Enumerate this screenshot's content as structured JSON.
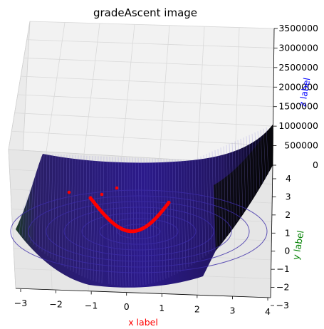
{
  "chart_data": {
    "type": "surface3d",
    "title": "gradeAscent image",
    "xlabel": "x label",
    "ylabel": "y label",
    "zlabel": "z label",
    "xlabel_color": "#ff0000",
    "ylabel_color": "#008000",
    "zlabel_color": "#0000ff",
    "x_ticks": [
      "−3",
      "−2",
      "−1",
      "0",
      "1",
      "2",
      "3",
      "4"
    ],
    "y_ticks": [
      "4",
      "3",
      "2",
      "1",
      "0",
      "−1",
      "−2",
      "−3"
    ],
    "z_ticks": [
      "0",
      "500000",
      "1000000",
      "1500000",
      "2000000",
      "2500000",
      "3000000",
      "3500000"
    ],
    "xlim": [
      -3,
      4
    ],
    "ylim": [
      -3,
      4
    ],
    "zlim": [
      0,
      3500000
    ],
    "grid": true,
    "surface_colormap": "dark blue-purple to black",
    "trajectory_color": "#ff0000"
  }
}
